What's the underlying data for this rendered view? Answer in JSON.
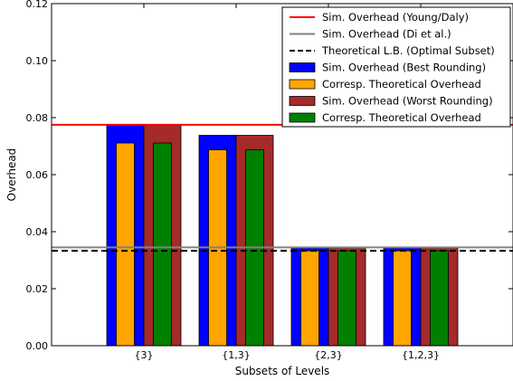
{
  "chart_data": {
    "type": "bar",
    "xlabel": "Subsets of Levels",
    "ylabel": "Overhead",
    "ylim": [
      0.0,
      0.12
    ],
    "yticks": [
      "0.00",
      "0.02",
      "0.04",
      "0.06",
      "0.08",
      "0.10",
      "0.12"
    ],
    "ytick_values": [
      0.0,
      0.02,
      0.04,
      0.06,
      0.08,
      0.1,
      0.12
    ],
    "categories": [
      "{3}",
      "{1,3}",
      "{2,3}",
      "{1,2,3}"
    ],
    "grid": false,
    "legend_position": "top-right",
    "series": [
      {
        "name": "Sim. Overhead (Best Rounding)",
        "color": "#0000ff",
        "values": [
          0.0775,
          0.0738,
          0.0343,
          0.0343
        ]
      },
      {
        "name": "Corresp. Theoretical Overhead",
        "color": "#ffa500",
        "values": [
          0.0711,
          0.0687,
          0.0333,
          0.0333
        ]
      },
      {
        "name": "Sim. Overhead (Worst Rounding)",
        "color": "#a52a2a",
        "values": [
          0.0775,
          0.0738,
          0.0343,
          0.0343
        ]
      },
      {
        "name": "Corresp. Theoretical Overhead",
        "color": "#008000",
        "values": [
          0.0711,
          0.0687,
          0.0333,
          0.0333
        ]
      }
    ],
    "reference_lines": [
      {
        "name": "Sim. Overhead (Young/Daly)",
        "color": "#ff0000",
        "style": "solid",
        "value": 0.0775
      },
      {
        "name": "Sim. Overhead (Di et al.)",
        "color": "#808080",
        "style": "solid",
        "value": 0.0345
      },
      {
        "name": "Theoretical L.B. (Optimal Subset)",
        "color": "#000000",
        "style": "dashed",
        "value": 0.0333
      }
    ]
  }
}
